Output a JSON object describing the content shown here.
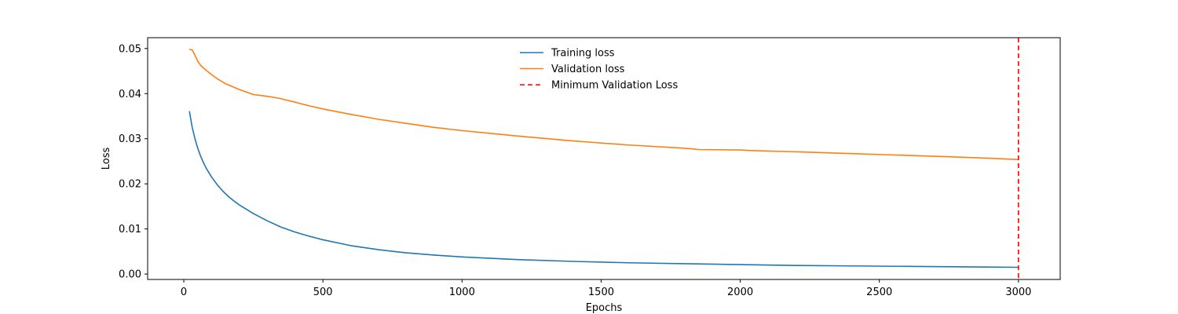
{
  "chart_data": {
    "type": "line",
    "title": "",
    "xlabel": "Epochs",
    "ylabel": "Loss",
    "xlim": [
      -130,
      3150
    ],
    "ylim": [
      -0.0012,
      0.0524
    ],
    "x_ticks": [
      0,
      500,
      1000,
      1500,
      2000,
      2500,
      3000
    ],
    "x_tick_labels": [
      "0",
      "500",
      "1000",
      "1500",
      "2000",
      "2500",
      "3000"
    ],
    "y_ticks": [
      0.0,
      0.01,
      0.02,
      0.03,
      0.04,
      0.05
    ],
    "y_tick_labels": [
      "0.00",
      "0.01",
      "0.02",
      "0.03",
      "0.04",
      "0.05"
    ],
    "grid": false,
    "legend_position": "top-center",
    "series": [
      {
        "name": "Training loss",
        "color": "#1f77b4",
        "style": "solid",
        "x": [
          20,
          30,
          40,
          50,
          60,
          70,
          80,
          100,
          120,
          140,
          160,
          180,
          200,
          250,
          300,
          350,
          400,
          450,
          500,
          600,
          700,
          800,
          900,
          1000,
          1200,
          1400,
          1600,
          1800,
          2000,
          2200,
          2400,
          2600,
          2800,
          3000
        ],
        "values": [
          0.0361,
          0.0326,
          0.03,
          0.0279,
          0.0262,
          0.0248,
          0.0235,
          0.0215,
          0.0198,
          0.0184,
          0.0172,
          0.0162,
          0.0153,
          0.0134,
          0.0118,
          0.0104,
          0.0093,
          0.0084,
          0.0076,
          0.0063,
          0.0054,
          0.0047,
          0.0042,
          0.0038,
          0.0032,
          0.0028,
          0.0025,
          0.0023,
          0.0021,
          0.0019,
          0.0018,
          0.0017,
          0.0016,
          0.0015
        ]
      },
      {
        "name": "Validation loss",
        "color": "#ff7f0e",
        "style": "solid",
        "x": [
          20,
          30,
          40,
          50,
          60,
          70,
          80,
          100,
          120,
          150,
          200,
          250,
          300,
          340,
          400,
          450,
          500,
          600,
          700,
          800,
          900,
          1000,
          1200,
          1400,
          1600,
          1800,
          1850,
          2000,
          2030,
          2200,
          2400,
          2600,
          2800,
          3000
        ],
        "values": [
          0.0498,
          0.0497,
          0.0485,
          0.0472,
          0.0463,
          0.0457,
          0.0452,
          0.0442,
          0.0433,
          0.0422,
          0.0409,
          0.0398,
          0.0394,
          0.039,
          0.0381,
          0.0373,
          0.0366,
          0.0354,
          0.0343,
          0.0334,
          0.0325,
          0.0318,
          0.0306,
          0.0295,
          0.0286,
          0.0279,
          0.0276,
          0.0275,
          0.0274,
          0.0271,
          0.0267,
          0.0263,
          0.0259,
          0.0254
        ]
      }
    ],
    "vertical_lines": [
      {
        "name": "Minimum Validation Loss",
        "x": 3000,
        "color": "#ff0000",
        "style": "dashed"
      }
    ]
  }
}
